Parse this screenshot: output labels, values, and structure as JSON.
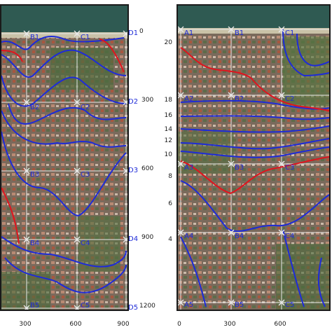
{
  "left_panel": {
    "row_ticks": [
      "0",
      "300",
      "600",
      "900",
      "1200"
    ],
    "col_ticks": [
      "300",
      "600",
      "900"
    ],
    "side_labels": [
      "D1",
      "D2",
      "D3",
      "D4",
      "D5"
    ],
    "point_labels": [
      "B1",
      "C1",
      "B2",
      "C2",
      "B3",
      "C3",
      "B4",
      "C4",
      "B5",
      "C5"
    ]
  },
  "right_panel": {
    "row_ticks": [
      "20",
      "18",
      "16",
      "14",
      "12",
      "10",
      "8",
      "6",
      "4"
    ],
    "col_ticks": [
      "0",
      "300",
      "600"
    ],
    "point_labels": [
      "A1",
      "B1",
      "C1",
      "A2",
      "B2",
      "C2",
      "A3",
      "B3",
      "C3",
      "A4",
      "B4",
      "C4",
      "A5",
      "B5",
      "C5"
    ]
  },
  "colors": {
    "contour_blue": "#1e2bd8",
    "contour_red": "#e0141e",
    "grid": "#e8e8e8",
    "label_blue": "#1e2bd8"
  }
}
